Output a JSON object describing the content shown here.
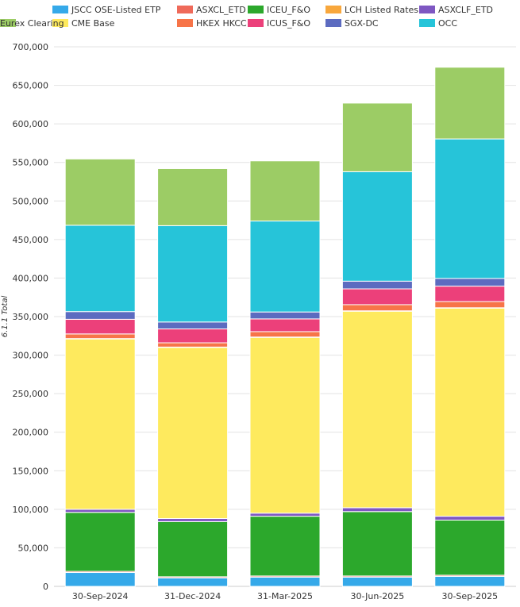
{
  "chart_data": {
    "type": "bar",
    "stacked": true,
    "categories": [
      "30-Sep-2024",
      "31-Dec-2024",
      "31-Mar-2025",
      "30-Jun-2025",
      "30-Sep-2025"
    ],
    "ylabel": "6.1.1 Total",
    "ylim": [
      0,
      700000
    ],
    "yticks": [
      0,
      50000,
      100000,
      150000,
      200000,
      250000,
      300000,
      350000,
      400000,
      450000,
      500000,
      550000,
      600000,
      650000,
      700000
    ],
    "ytick_labels": [
      "0",
      "50,000",
      "100,000",
      "150,000",
      "200,000",
      "250,000",
      "300,000",
      "350,000",
      "400,000",
      "450,000",
      "500,000",
      "550,000",
      "600,000",
      "650,000",
      "700,000"
    ],
    "grid": true,
    "legend_position": "top",
    "legend_order": [
      "JSCC OSE-Listed ETP",
      "ASXCL_ETD",
      "ICEU_F&O",
      "LCH Listed Rates",
      "ASXCLF_ETD",
      "CME Base",
      "HKEX HKCC",
      "ICUS_F&O",
      "SGX-DC",
      "OCC",
      "Eurex Clearing"
    ],
    "series": [
      {
        "name": "JSCC OSE-Listed ETP",
        "color": "#35a9e9",
        "values": [
          18000,
          11000,
          12000,
          12000,
          13000
        ]
      },
      {
        "name": "ASXCL_ETD",
        "color": "#ef6a5a",
        "values": [
          1500,
          1500,
          1500,
          1500,
          1500
        ]
      },
      {
        "name": "ICEU_F&O",
        "color": "#2ca82c",
        "values": [
          76500,
          71500,
          77500,
          83500,
          71500
        ]
      },
      {
        "name": "ASXCLF_ETD",
        "color": "#7e57c2",
        "values": [
          4000,
          4000,
          4000,
          5000,
          5000
        ]
      },
      {
        "name": "CME Base",
        "color": "#feea5e",
        "values": [
          221000,
          222000,
          228000,
          255000,
          270000
        ]
      },
      {
        "name": "LCH Listed Rates",
        "color": "#f8a73c",
        "values": [
          500,
          500,
          500,
          500,
          500
        ]
      },
      {
        "name": "HKEX HKCC",
        "color": "#f77448",
        "values": [
          6000,
          5500,
          7000,
          8000,
          8000
        ]
      },
      {
        "name": "ICUS_F&O",
        "color": "#ec407a",
        "values": [
          19000,
          18000,
          16500,
          20500,
          20000
        ]
      },
      {
        "name": "SGX-DC",
        "color": "#5c6bc0",
        "values": [
          10000,
          9000,
          9000,
          10000,
          10000
        ]
      },
      {
        "name": "OCC",
        "color": "#26c4d9",
        "values": [
          112000,
          125000,
          118000,
          142000,
          181000
        ]
      },
      {
        "name": "Eurex Clearing",
        "color": "#9ccc65",
        "values": [
          86000,
          74000,
          78000,
          89000,
          93000
        ]
      }
    ]
  }
}
